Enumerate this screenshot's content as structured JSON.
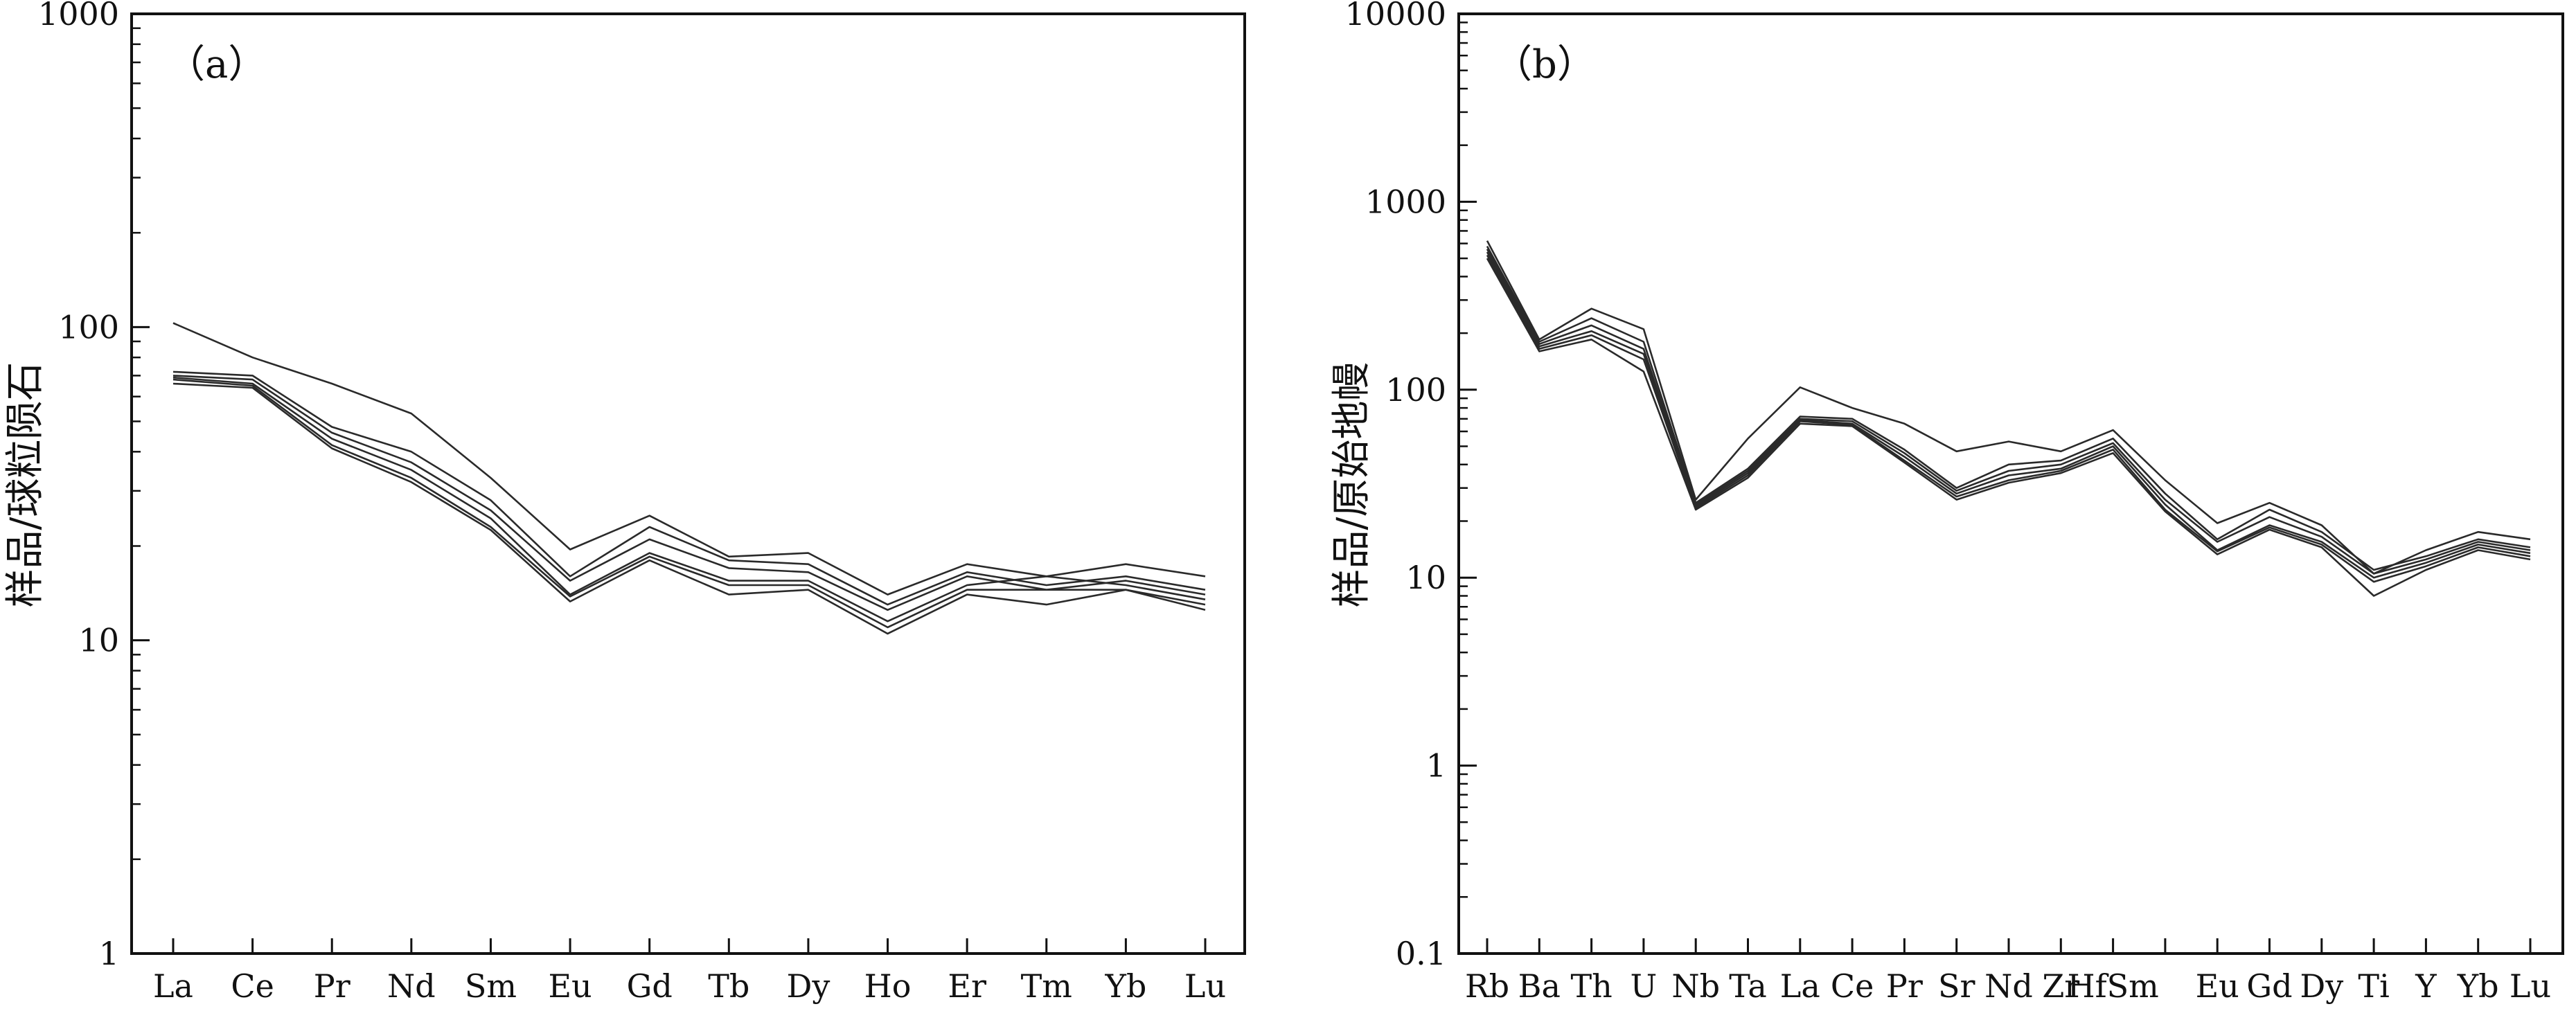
{
  "chart_data": [
    {
      "type": "line",
      "panel_label": "（a）",
      "ylabel": "样品/球粒陨石",
      "xlabel": "",
      "yscale": "log",
      "ylim": [
        1,
        1000
      ],
      "yticks": [
        1,
        10,
        100,
        1000
      ],
      "ytick_labels": [
        "1",
        "10",
        "100",
        "1000"
      ],
      "line_color": "#2a2a2a",
      "legend": "none",
      "grid": false,
      "categories": [
        "La",
        "Ce",
        "Pr",
        "Nd",
        "Sm",
        "Eu",
        "Gd",
        "Tb",
        "Dy",
        "Ho",
        "Er",
        "Tm",
        "Yb",
        "Lu"
      ],
      "series": [
        {
          "values": [
            103,
            80,
            66,
            53,
            33,
            19.5,
            25,
            18.5,
            19,
            14,
            17.5,
            16,
            17.5,
            16
          ]
        },
        {
          "values": [
            72,
            70,
            48,
            40,
            28,
            16,
            23,
            18,
            17.5,
            13,
            16.5,
            15,
            16,
            14.5
          ]
        },
        {
          "values": [
            70,
            68,
            46,
            37,
            26,
            15.5,
            21,
            17,
            16.5,
            12.5,
            16,
            14.5,
            15.5,
            14
          ]
        },
        {
          "values": [
            69,
            66,
            44,
            35,
            24.5,
            14,
            19,
            15.5,
            15.5,
            11.5,
            15,
            16,
            15,
            13.5
          ]
        },
        {
          "values": [
            68,
            65,
            42,
            33,
            23,
            13.8,
            18.5,
            15,
            15,
            11,
            14.5,
            14.5,
            14.5,
            13
          ]
        },
        {
          "values": [
            66,
            64,
            41,
            32,
            22.5,
            13.3,
            18,
            14,
            14.5,
            10.5,
            14,
            13,
            14.5,
            12.5
          ]
        }
      ]
    },
    {
      "type": "line",
      "panel_label": "（b）",
      "ylabel": "样品/原始地幔",
      "xlabel": "",
      "yscale": "log",
      "ylim": [
        0.1,
        10000
      ],
      "yticks": [
        0.1,
        1,
        10,
        100,
        1000,
        10000
      ],
      "ytick_labels": [
        "0.1",
        "1",
        "10",
        "100",
        "1000",
        "10000"
      ],
      "line_color": "#2a2a2a",
      "legend": "none",
      "grid": false,
      "categories": [
        "Rb",
        "Ba",
        "Th",
        "U",
        "Nb",
        "Ta",
        "La",
        "Ce",
        "Pr",
        "Sr",
        "Nd",
        "Zr",
        "Hf",
        "Sm",
        "Eu",
        "Gd",
        "Dy",
        "Ti",
        "Y",
        "Yb",
        "Lu"
      ],
      "category_labels": [
        "Rb",
        "Ba",
        "Th",
        "U",
        "Nb",
        "Ta",
        "La",
        "Ce",
        "Pr",
        "Sr",
        "Nd",
        "Zr",
        "HfSm",
        "",
        "Eu",
        "Gd",
        "Dy",
        "Ti",
        "Y",
        "Yb",
        "Lu"
      ],
      "series": [
        {
          "values": [
            620,
            185,
            270,
            210,
            26,
            55,
            103,
            80,
            66,
            47,
            53,
            47,
            61,
            33,
            19.5,
            25,
            19,
            10.5,
            14,
            17.5,
            16
          ]
        },
        {
          "values": [
            580,
            180,
            240,
            180,
            25,
            38,
            72,
            70,
            48,
            30,
            40,
            42,
            55,
            28,
            16,
            23,
            17.5,
            11,
            13,
            16,
            14.5
          ]
        },
        {
          "values": [
            560,
            175,
            220,
            165,
            24.5,
            37,
            70,
            68,
            46,
            29,
            37,
            40,
            52,
            26,
            15.5,
            21,
            16.5,
            10.5,
            12.5,
            15.5,
            14
          ]
        },
        {
          "values": [
            540,
            170,
            205,
            155,
            24,
            36,
            69,
            66,
            44,
            28,
            35,
            38,
            50,
            24.5,
            14,
            19,
            15.5,
            10,
            12,
            15,
            13.5
          ]
        },
        {
          "values": [
            520,
            165,
            195,
            145,
            23.5,
            35,
            68,
            65,
            42,
            27,
            33,
            37,
            48,
            23,
            13.8,
            18.5,
            15,
            9.5,
            11.5,
            14.5,
            13
          ]
        },
        {
          "values": [
            500,
            160,
            185,
            125,
            23,
            34,
            66,
            64,
            41,
            26,
            32,
            36,
            46,
            22.5,
            13.3,
            18,
            14.5,
            8,
            11,
            14,
            12.5
          ]
        }
      ]
    }
  ]
}
